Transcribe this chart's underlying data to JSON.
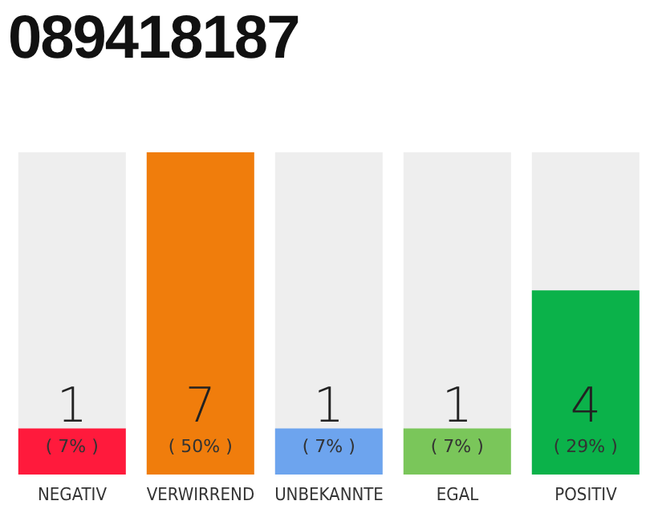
{
  "chart_data": {
    "type": "bar",
    "title": "089418187",
    "categories": [
      "NEGATIV",
      "VERWIRREND",
      "UNBEKANNTE",
      "EGAL",
      "POSITIV"
    ],
    "values": [
      1,
      7,
      1,
      1,
      4
    ],
    "colors": [
      "#ff1a3c",
      "#f07d0c",
      "#6da4ee",
      "#7ac65a",
      "#0bb24a"
    ],
    "data_labels": true,
    "annotations": [
      "( 7% )",
      "( 50% )",
      "( 7% )",
      "( 7% )",
      "( 29% )"
    ]
  }
}
